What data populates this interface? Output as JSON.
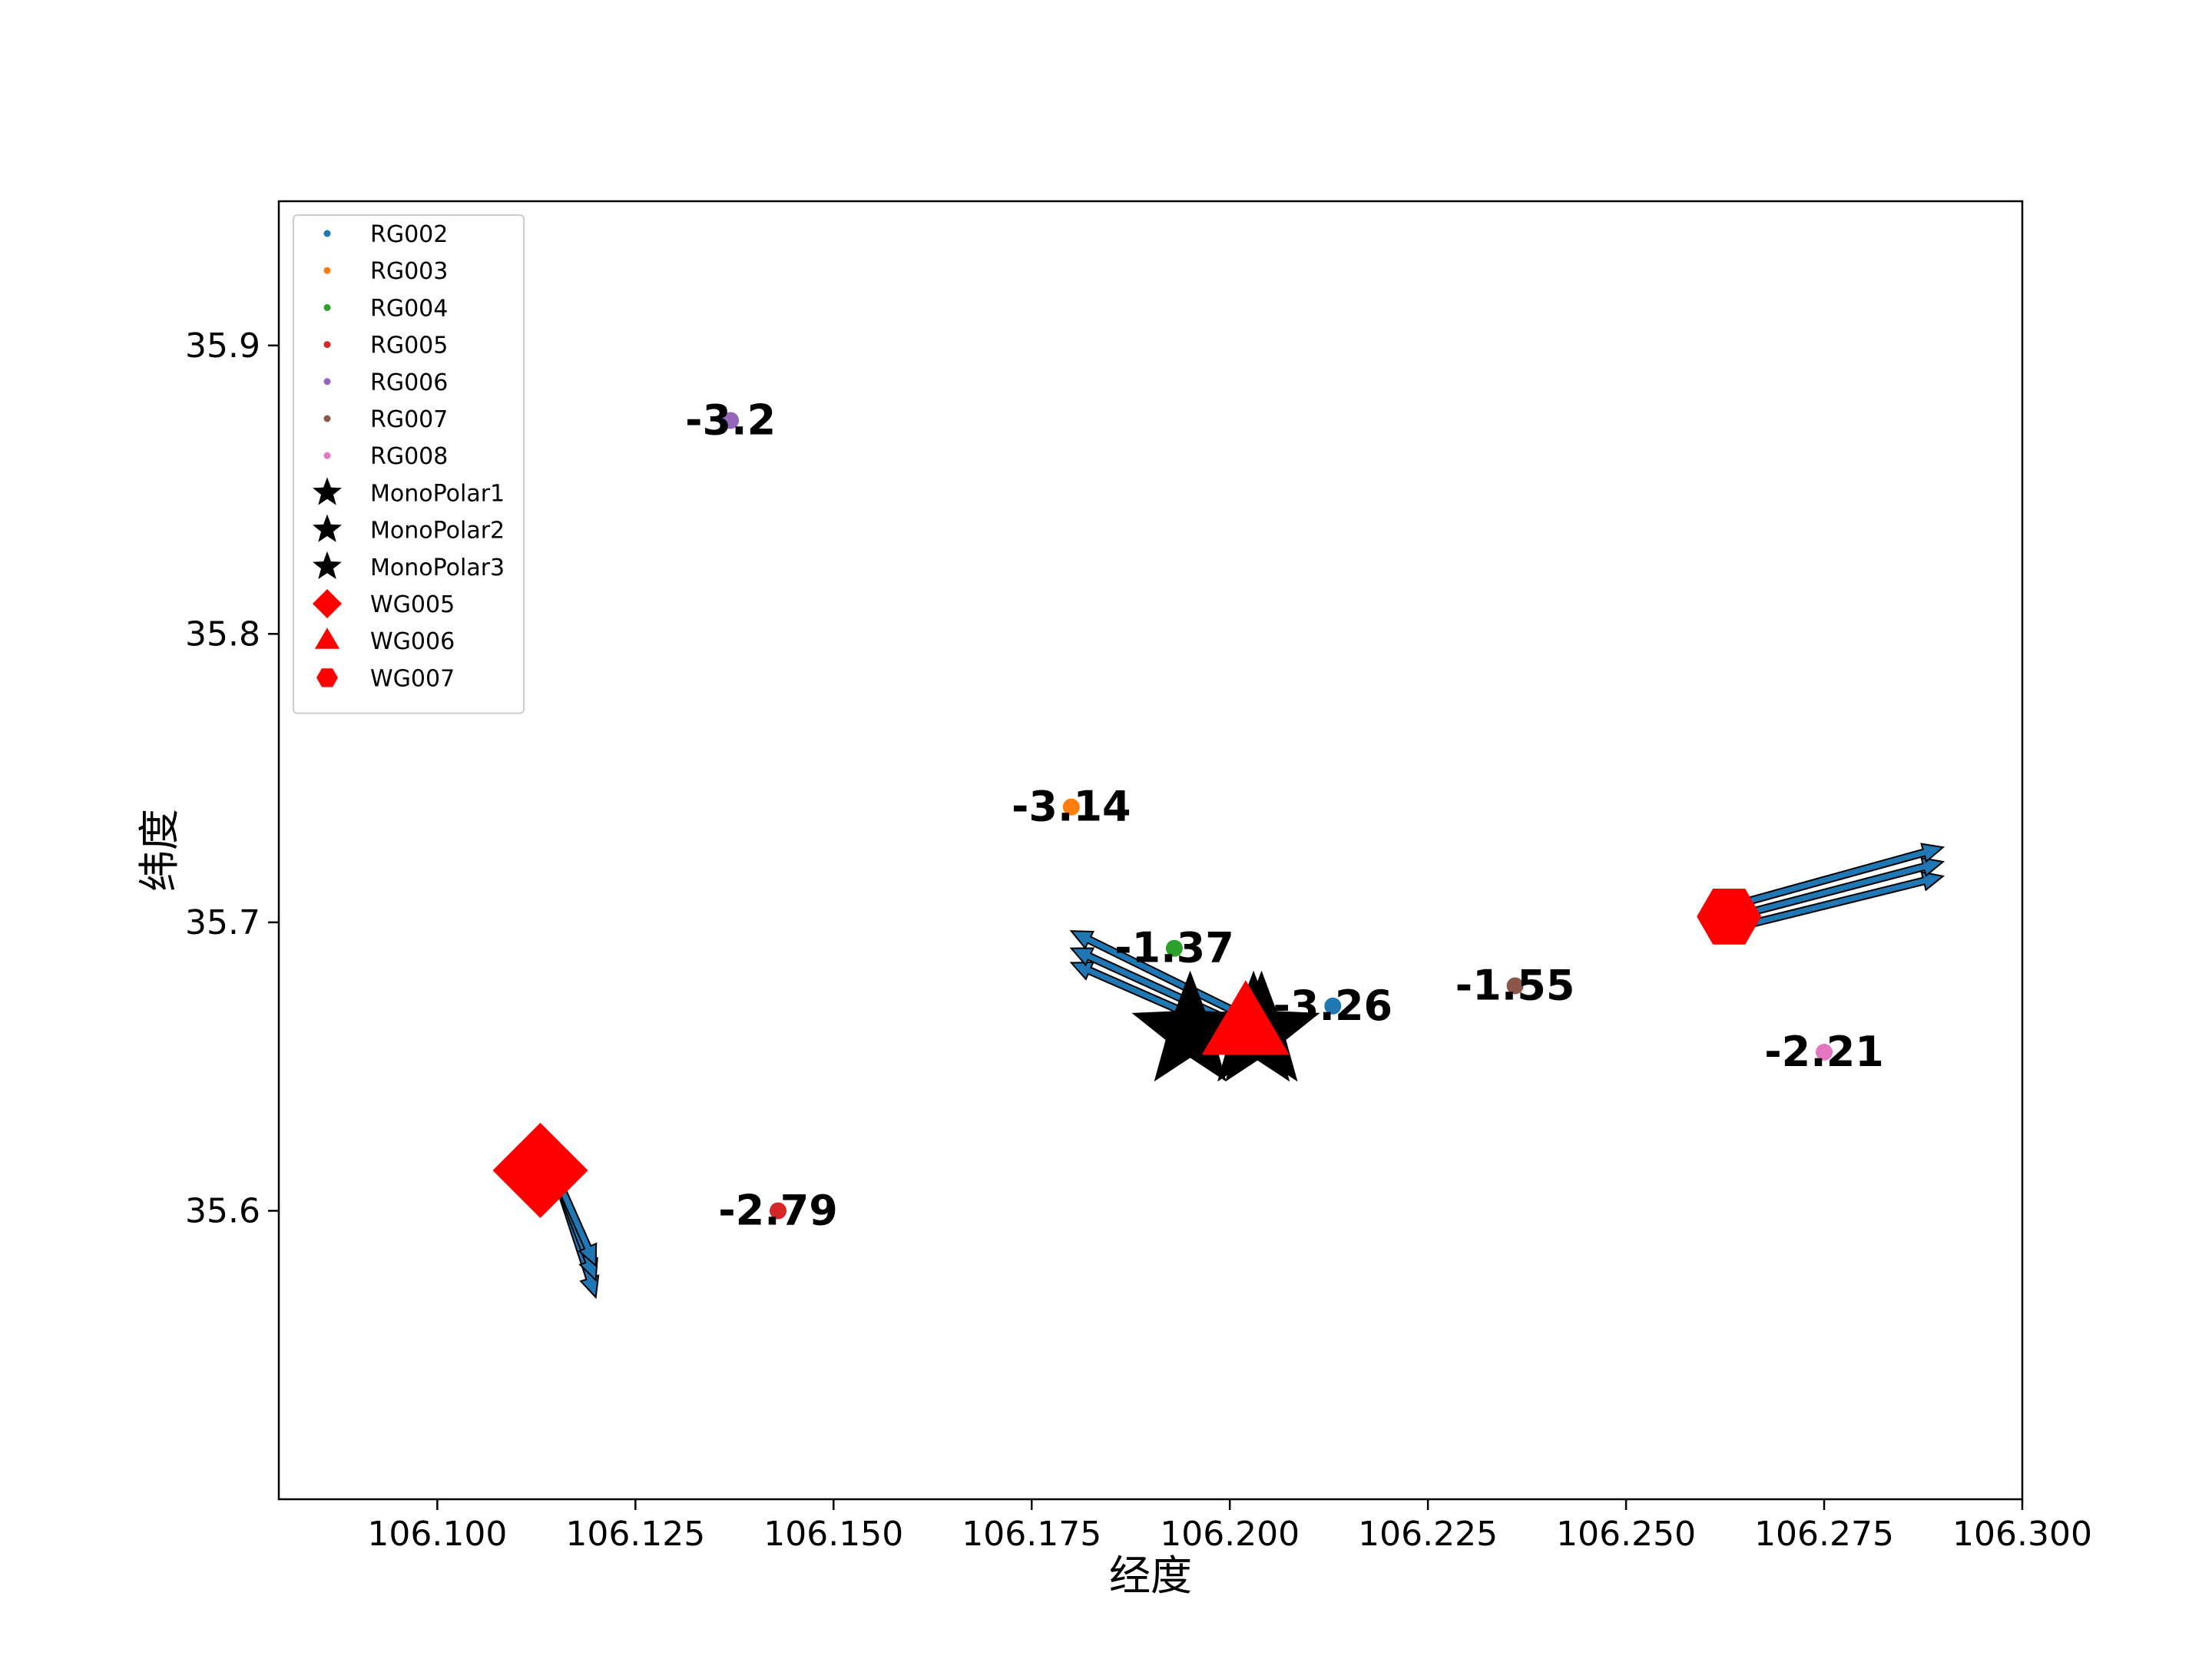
{
  "chart_data": {
    "type": "scatter",
    "title": "",
    "xlabel": "经度",
    "ylabel": "纬度",
    "xlim": [
      106.08,
      106.3
    ],
    "ylim": [
      35.5,
      35.95
    ],
    "x_ticks": [
      106.1,
      106.125,
      106.15,
      106.175,
      106.2,
      106.225,
      106.25,
      106.275,
      106.3
    ],
    "x_tick_labels": [
      "106.100",
      "106.125",
      "106.150",
      "106.175",
      "106.200",
      "106.225",
      "106.250",
      "106.275",
      "106.300"
    ],
    "y_ticks": [
      35.6,
      35.7,
      35.8,
      35.9
    ],
    "y_tick_labels": [
      "35.6",
      "35.7",
      "35.8",
      "35.9"
    ],
    "grid": false,
    "legend_position": "top-left",
    "stations": [
      {
        "name": "RG002",
        "x": 106.213,
        "y": 35.671,
        "value": "-3.26",
        "color": "#1f77b4"
      },
      {
        "name": "RG003",
        "x": 106.18,
        "y": 35.74,
        "value": "-3.14",
        "color": "#ff7f0e"
      },
      {
        "name": "RG004",
        "x": 106.193,
        "y": 35.691,
        "value": "-1.37",
        "color": "#2ca02c"
      },
      {
        "name": "RG005",
        "x": 106.143,
        "y": 35.6,
        "value": "-2.79",
        "color": "#d62728"
      },
      {
        "name": "RG006",
        "x": 106.137,
        "y": 35.874,
        "value": "-3.2",
        "color": "#9467bd"
      },
      {
        "name": "RG007",
        "x": 106.236,
        "y": 35.678,
        "value": "-1.55",
        "color": "#8c564b"
      },
      {
        "name": "RG008",
        "x": 106.275,
        "y": 35.655,
        "value": "-2.21",
        "color": "#e377c2"
      }
    ],
    "monopolars": [
      {
        "name": "MonoPolar1",
        "x": 106.195,
        "y": 35.662,
        "color": "#000000"
      },
      {
        "name": "MonoPolar2",
        "x": 106.203,
        "y": 35.662,
        "color": "#000000"
      },
      {
        "name": "MonoPolar3",
        "x": 106.204,
        "y": 35.662,
        "color": "#000000"
      }
    ],
    "wells": [
      {
        "name": "WG005",
        "marker": "diamond",
        "x": 106.113,
        "y": 35.614,
        "color": "#ff0000"
      },
      {
        "name": "WG006",
        "marker": "triangle",
        "x": 106.202,
        "y": 35.664,
        "color": "#ff0000"
      },
      {
        "name": "WG007",
        "marker": "hexagon",
        "x": 106.263,
        "y": 35.702,
        "color": "#ff0000"
      }
    ],
    "arrow_color": "#1f77b4",
    "arrows": [
      {
        "x0": 106.115,
        "y0": 35.612,
        "x1": 106.12,
        "y1": 35.57
      },
      {
        "x0": 106.115,
        "y0": 35.612,
        "x1": 106.12,
        "y1": 35.576
      },
      {
        "x0": 106.115,
        "y0": 35.612,
        "x1": 106.12,
        "y1": 35.581
      },
      {
        "x0": 106.2,
        "y0": 35.662,
        "x1": 106.18,
        "y1": 35.686
      },
      {
        "x0": 106.2,
        "y0": 35.666,
        "x1": 106.18,
        "y1": 35.691
      },
      {
        "x0": 106.2,
        "y0": 35.67,
        "x1": 106.18,
        "y1": 35.697
      },
      {
        "x0": 106.265,
        "y0": 35.699,
        "x1": 106.29,
        "y1": 35.716
      },
      {
        "x0": 106.265,
        "y0": 35.703,
        "x1": 106.29,
        "y1": 35.721
      },
      {
        "x0": 106.265,
        "y0": 35.707,
        "x1": 106.29,
        "y1": 35.726
      }
    ]
  }
}
